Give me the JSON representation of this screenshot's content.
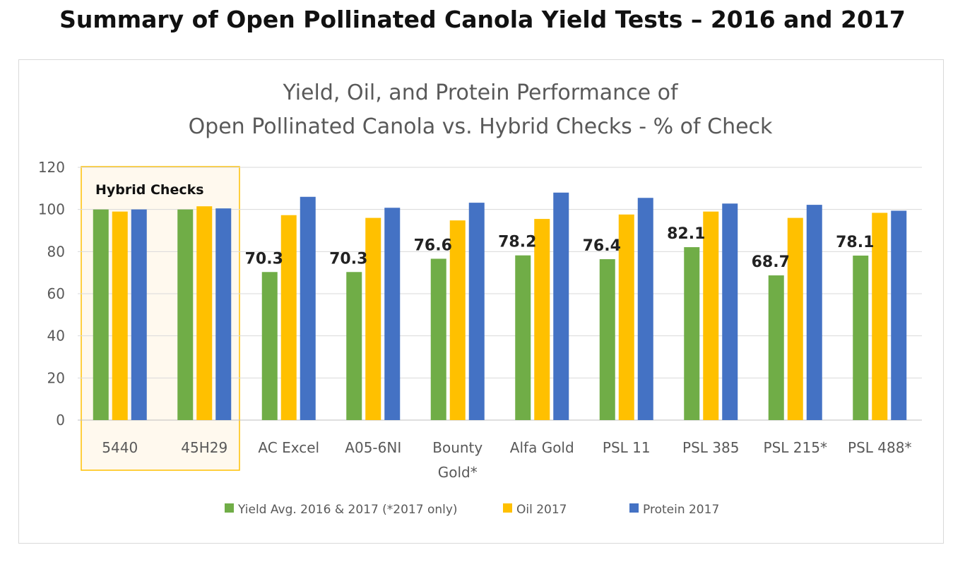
{
  "page": {
    "title": "Summary of Open Pollinated Canola Yield Tests – 2016 and 2017"
  },
  "chart_data": {
    "type": "bar",
    "title": [
      "Yield, Oil, and Protein Performance of",
      "Open Pollinated Canola vs. Hybrid Checks - % of Check"
    ],
    "xlabel": "",
    "ylabel": "",
    "ylim": [
      0,
      120
    ],
    "yticks": [
      0,
      20,
      40,
      60,
      80,
      100,
      120
    ],
    "grid": true,
    "legend_position": "bottom",
    "categories": [
      [
        "5440"
      ],
      [
        "45H29"
      ],
      [
        "AC Excel"
      ],
      [
        "A05-6NI"
      ],
      [
        "Bounty",
        "Gold*"
      ],
      [
        "Alfa Gold"
      ],
      [
        "PSL 11"
      ],
      [
        "PSL 385"
      ],
      [
        "PSL 215*"
      ],
      [
        "PSL 488*"
      ]
    ],
    "series": [
      {
        "name": "Yield Avg. 2016 & 2017 (*2017 only)",
        "color": "#70AD47",
        "values": [
          100,
          100,
          70.3,
          70.3,
          76.6,
          78.2,
          76.4,
          82.1,
          68.7,
          78.1
        ]
      },
      {
        "name": "Oil 2017",
        "color": "#FFC000",
        "values": [
          99,
          101.5,
          97.3,
          96,
          94.8,
          95.5,
          97.6,
          99,
          96,
          98.4
        ]
      },
      {
        "name": "Protein 2017",
        "color": "#4472C4",
        "values": [
          100,
          100.5,
          106,
          100.8,
          103.2,
          108,
          105.5,
          102.8,
          102.2,
          99.4
        ]
      }
    ],
    "data_labels": [
      {
        "category_index": 2,
        "text": "70.3"
      },
      {
        "category_index": 3,
        "text": "70.3"
      },
      {
        "category_index": 4,
        "text": "76.6"
      },
      {
        "category_index": 5,
        "text": "78.2"
      },
      {
        "category_index": 6,
        "text": "76.4"
      },
      {
        "category_index": 7,
        "text": "82.1"
      },
      {
        "category_index": 8,
        "text": "68.7"
      },
      {
        "category_index": 9,
        "text": "78.1"
      }
    ],
    "annotation": {
      "text": "Hybrid Checks",
      "covers_categories": [
        0,
        1
      ],
      "fill": "#FFF9EE",
      "border": "#FFC000"
    }
  }
}
